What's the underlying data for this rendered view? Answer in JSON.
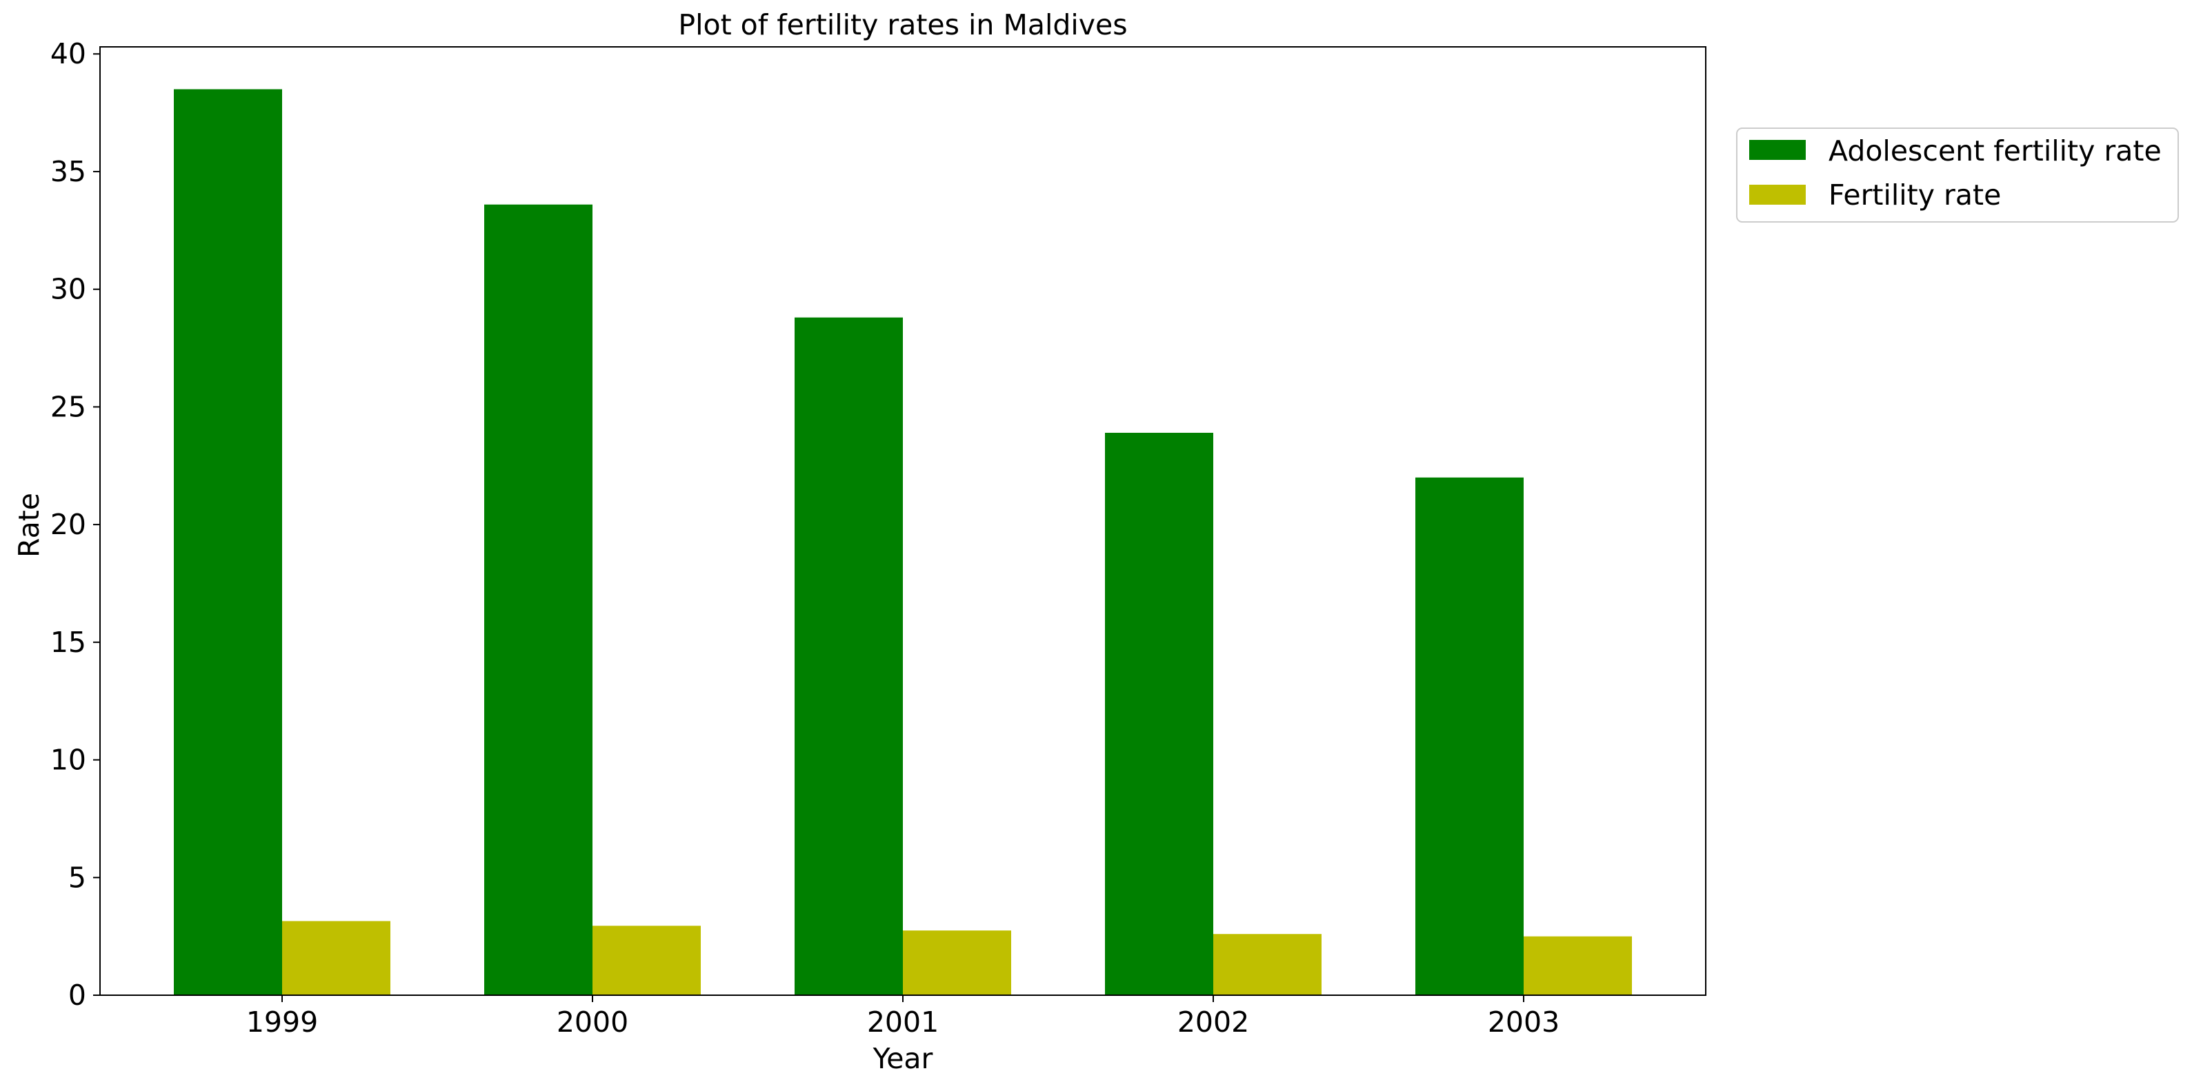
{
  "chart_data": {
    "type": "bar",
    "title": "Plot of fertility rates in Maldives",
    "xlabel": "Year",
    "ylabel": "Rate",
    "categories": [
      "1999",
      "2000",
      "2001",
      "2002",
      "2003"
    ],
    "series": [
      {
        "name": "Adolescent fertility rate",
        "color": "#008000",
        "values": [
          38.5,
          33.6,
          28.8,
          23.9,
          22.0
        ]
      },
      {
        "name": "Fertility rate",
        "color": "#bfbf00",
        "values": [
          3.15,
          2.95,
          2.75,
          2.6,
          2.5
        ]
      }
    ],
    "ylim": [
      0,
      40.3
    ],
    "yticks": [
      0,
      5,
      10,
      15,
      20,
      25,
      30,
      35,
      40
    ],
    "grid": false,
    "legend_position": "outside-top-right"
  }
}
